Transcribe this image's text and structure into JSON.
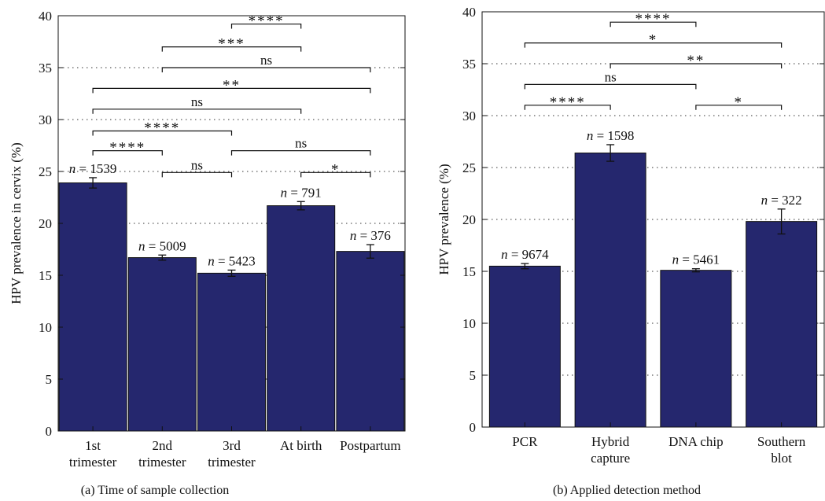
{
  "chart_data": [
    {
      "type": "bar",
      "caption": "(a)  Time of sample collection",
      "ylabel": "HPV prevalence in cervix (%)",
      "ylim": [
        0,
        40
      ],
      "yticks": [
        0,
        5,
        10,
        15,
        20,
        25,
        30,
        35,
        40
      ],
      "grid": true,
      "categories": [
        [
          "1st",
          "trimester"
        ],
        [
          "2nd",
          "trimester"
        ],
        [
          "3rd",
          "trimester"
        ],
        [
          "At birth"
        ],
        [
          "Postpartum"
        ]
      ],
      "values": [
        23.9,
        16.7,
        15.2,
        21.7,
        17.3
      ],
      "error": [
        0.5,
        0.25,
        0.3,
        0.4,
        0.65
      ],
      "n_labels": [
        "1539",
        "5009",
        "5423",
        "791",
        "376"
      ],
      "significance": [
        {
          "from": 2,
          "to": 3,
          "y": 39.2,
          "label": "****"
        },
        {
          "from": 1,
          "to": 3,
          "y": 37.0,
          "label": "***"
        },
        {
          "from": 1,
          "to": 4,
          "y": 35.0,
          "label": "ns"
        },
        {
          "from": 0,
          "to": 4,
          "y": 33.0,
          "label": "**"
        },
        {
          "from": 0,
          "to": 3,
          "y": 31.0,
          "label": "ns"
        },
        {
          "from": 0,
          "to": 2,
          "y": 28.9,
          "label": "****"
        },
        {
          "from": 0,
          "to": 1,
          "y": 27.0,
          "label": "****"
        },
        {
          "from": 2,
          "to": 4,
          "y": 27.0,
          "label": "ns"
        },
        {
          "from": 1,
          "to": 2,
          "y": 24.9,
          "label": "ns"
        },
        {
          "from": 3,
          "to": 4,
          "y": 24.9,
          "label": "*"
        }
      ]
    },
    {
      "type": "bar",
      "caption": "(b)  Applied detection method",
      "ylabel": "HPV prevalence (%)",
      "ylim": [
        0,
        40
      ],
      "yticks": [
        0,
        5,
        10,
        15,
        20,
        25,
        30,
        35,
        40
      ],
      "grid": true,
      "categories": [
        [
          "PCR"
        ],
        [
          "Hybrid",
          "capture"
        ],
        [
          "DNA chip"
        ],
        [
          "Southern",
          "blot"
        ]
      ],
      "values": [
        15.5,
        26.4,
        15.1,
        19.8
      ],
      "error": [
        0.25,
        0.8,
        0.15,
        1.2
      ],
      "n_labels": [
        "9674",
        "1598",
        "5461",
        "322"
      ],
      "significance": [
        {
          "from": 1,
          "to": 2,
          "y": 39.0,
          "label": "****"
        },
        {
          "from": 0,
          "to": 3,
          "y": 37.0,
          "label": "*"
        },
        {
          "from": 1,
          "to": 3,
          "y": 35.0,
          "label": "**"
        },
        {
          "from": 0,
          "to": 2,
          "y": 33.0,
          "label": "ns"
        },
        {
          "from": 0,
          "to": 1,
          "y": 31.0,
          "label": "****"
        },
        {
          "from": 2,
          "to": 3,
          "y": 31.0,
          "label": "*"
        }
      ]
    }
  ],
  "colors": {
    "bar": "#25276e"
  }
}
